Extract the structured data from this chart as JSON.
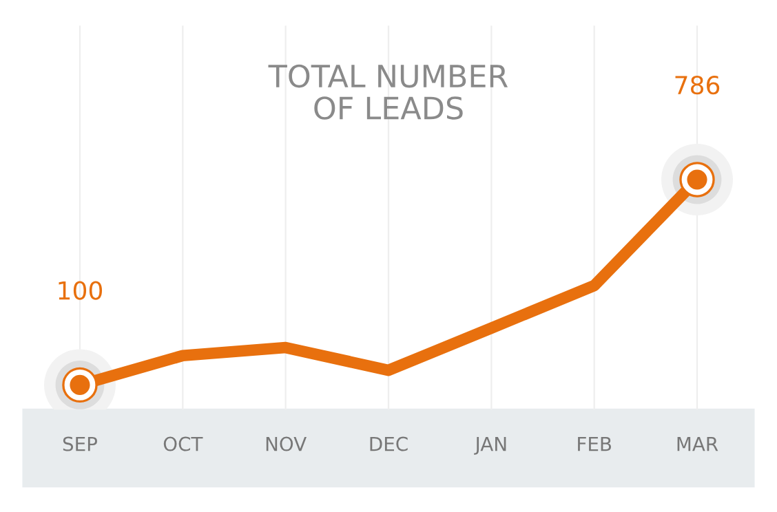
{
  "chart_data": {
    "type": "line",
    "title": "TOTAL NUMBER\nOF LEADS",
    "categories": [
      "SEP",
      "OCT",
      "NOV",
      "DEC",
      "JAN",
      "FEB",
      "MAR"
    ],
    "series": [
      {
        "color": "#e8700e",
        "values": [
          100,
          198,
          225,
          149,
          290,
          432,
          786
        ],
        "value_labels": [
          "100",
          null,
          null,
          null,
          null,
          null,
          "786"
        ]
      }
    ],
    "grid": "x"
  }
}
